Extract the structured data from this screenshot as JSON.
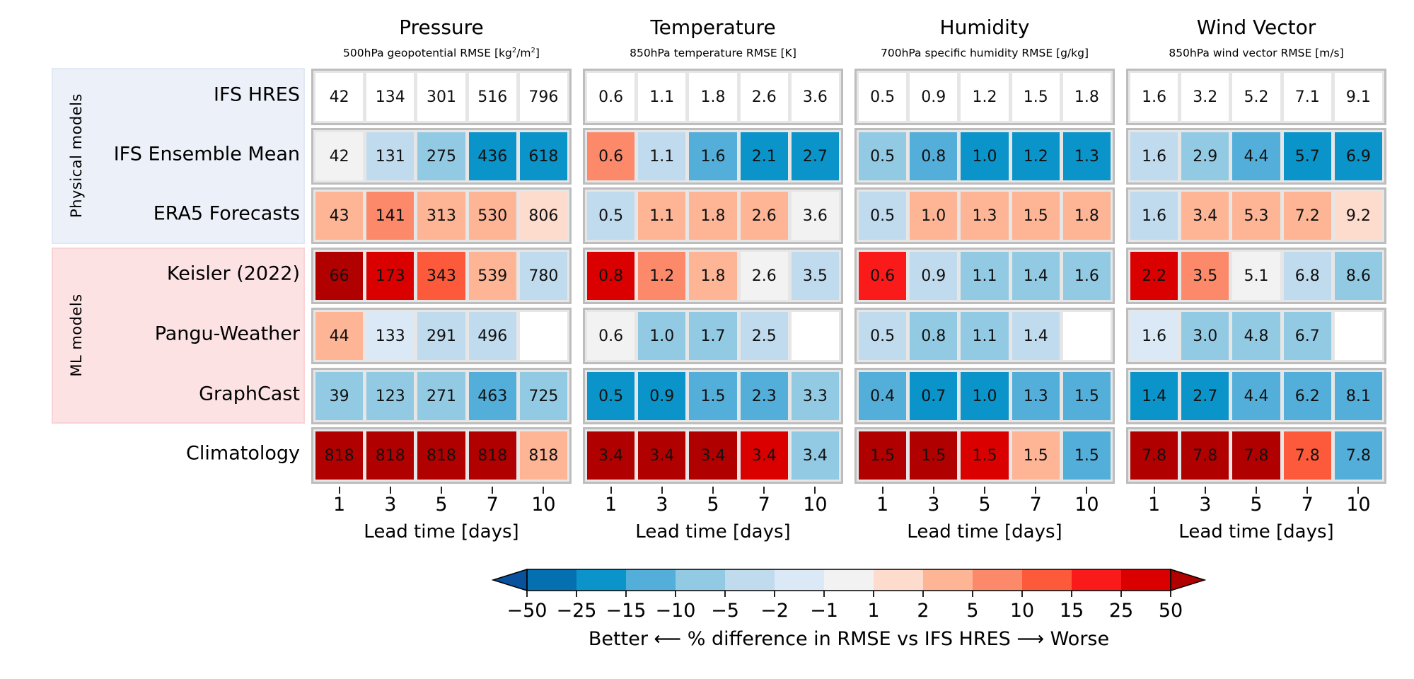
{
  "chart_data": {
    "type": "heatmap",
    "title": "",
    "xlabel": "Lead time [days]",
    "x": [
      1,
      3,
      5,
      7,
      10
    ],
    "groups": [
      {
        "name": "Physical models",
        "models": [
          "IFS HRES",
          "IFS Ensemble Mean",
          "ERA5 Forecasts"
        ],
        "band_color": "#ecf1f9"
      },
      {
        "name": "ML models",
        "models": [
          "Keisler (2022)",
          "Pangu-Weather",
          "GraphCast"
        ],
        "band_color": "#fde2e4"
      }
    ],
    "models": [
      "IFS HRES",
      "IFS Ensemble Mean",
      "ERA5 Forecasts",
      "Keisler (2022)",
      "Pangu-Weather",
      "GraphCast",
      "Climatology"
    ],
    "panels": [
      {
        "title": "Pressure",
        "subtitle_main": "500hPa geopotential RMSE [kg",
        "subtitle_sup1": "2",
        "subtitle_mid": "/m",
        "subtitle_sup2": "2",
        "subtitle_end": "]",
        "rows": [
          {
            "model": "IFS HRES",
            "values": [
              "42",
              "134",
              "301",
              "516",
              "796"
            ],
            "bins": [
              "base",
              "base",
              "base",
              "base",
              "base"
            ]
          },
          {
            "model": "IFS Ensemble Mean",
            "values": [
              "42",
              "131",
              "275",
              "436",
              "618"
            ],
            "bins": [
              "-1..1",
              "-5..-2",
              "-10..-5",
              "-25..-15",
              "-25..-15"
            ]
          },
          {
            "model": "ERA5 Forecasts",
            "values": [
              "43",
              "141",
              "313",
              "530",
              "806"
            ],
            "bins": [
              "2..5",
              "5..10",
              "2..5",
              "2..5",
              "1..2"
            ]
          },
          {
            "model": "Keisler (2022)",
            "values": [
              "66",
              "173",
              "343",
              "539",
              "780"
            ],
            "bins": [
              ">50",
              "25..50",
              "10..15",
              "2..5",
              "-5..-2"
            ]
          },
          {
            "model": "Pangu-Weather",
            "values": [
              "44",
              "133",
              "291",
              "496",
              ""
            ],
            "bins": [
              "2..5",
              "-2..-1",
              "-5..-2",
              "-5..-2",
              "none"
            ]
          },
          {
            "model": "GraphCast",
            "values": [
              "39",
              "123",
              "271",
              "463",
              "725"
            ],
            "bins": [
              "-10..-5",
              "-10..-5",
              "-10..-5",
              "-15..-10",
              "-10..-5"
            ]
          },
          {
            "model": "Climatology",
            "values": [
              "818",
              "818",
              "818",
              "818",
              "818"
            ],
            "bins": [
              ">50",
              ">50",
              ">50",
              ">50",
              "2..5"
            ]
          }
        ]
      },
      {
        "title": "Temperature",
        "subtitle_main": "850hPa temperature RMSE [K]",
        "rows": [
          {
            "model": "IFS HRES",
            "values": [
              "0.6",
              "1.1",
              "1.8",
              "2.6",
              "3.6"
            ],
            "bins": [
              "base",
              "base",
              "base",
              "base",
              "base"
            ]
          },
          {
            "model": "IFS Ensemble Mean",
            "values": [
              "0.6",
              "1.1",
              "1.6",
              "2.1",
              "2.7"
            ],
            "bins": [
              "5..10",
              "-5..-2",
              "-15..-10",
              "-25..-15",
              "-25..-15"
            ]
          },
          {
            "model": "ERA5 Forecasts",
            "values": [
              "0.5",
              "1.1",
              "1.8",
              "2.6",
              "3.6"
            ],
            "bins": [
              "-5..-2",
              "2..5",
              "2..5",
              "2..5",
              "-1..1"
            ]
          },
          {
            "model": "Keisler (2022)",
            "values": [
              "0.8",
              "1.2",
              "1.8",
              "2.6",
              "3.5"
            ],
            "bins": [
              "25..50",
              "5..10",
              "2..5",
              "-1..1",
              "-5..-2"
            ]
          },
          {
            "model": "Pangu-Weather",
            "values": [
              "0.6",
              "1.0",
              "1.7",
              "2.5",
              ""
            ],
            "bins": [
              "-1..1",
              "-10..-5",
              "-10..-5",
              "-5..-2",
              "none"
            ]
          },
          {
            "model": "GraphCast",
            "values": [
              "0.5",
              "0.9",
              "1.5",
              "2.3",
              "3.3"
            ],
            "bins": [
              "-25..-15",
              "-25..-15",
              "-15..-10",
              "-15..-10",
              "-10..-5"
            ]
          },
          {
            "model": "Climatology",
            "values": [
              "3.4",
              "3.4",
              "3.4",
              "3.4",
              "3.4"
            ],
            "bins": [
              ">50",
              ">50",
              ">50",
              "25..50",
              "-10..-5"
            ]
          }
        ]
      },
      {
        "title": "Humidity",
        "subtitle_main": "700hPa specific humidity RMSE [g/kg]",
        "rows": [
          {
            "model": "IFS HRES",
            "values": [
              "0.5",
              "0.9",
              "1.2",
              "1.5",
              "1.8"
            ],
            "bins": [
              "base",
              "base",
              "base",
              "base",
              "base"
            ]
          },
          {
            "model": "IFS Ensemble Mean",
            "values": [
              "0.5",
              "0.8",
              "1.0",
              "1.2",
              "1.3"
            ],
            "bins": [
              "-10..-5",
              "-15..-10",
              "-25..-15",
              "-25..-15",
              "-25..-15"
            ]
          },
          {
            "model": "ERA5 Forecasts",
            "values": [
              "0.5",
              "1.0",
              "1.3",
              "1.5",
              "1.8"
            ],
            "bins": [
              "-5..-2",
              "2..5",
              "2..5",
              "2..5",
              "2..5"
            ]
          },
          {
            "model": "Keisler (2022)",
            "values": [
              "0.6",
              "0.9",
              "1.1",
              "1.4",
              "1.6"
            ],
            "bins": [
              "15..25",
              "-5..-2",
              "-10..-5",
              "-10..-5",
              "-10..-5"
            ]
          },
          {
            "model": "Pangu-Weather",
            "values": [
              "0.5",
              "0.8",
              "1.1",
              "1.4",
              ""
            ],
            "bins": [
              "-5..-2",
              "-10..-5",
              "-10..-5",
              "-5..-2",
              "none"
            ]
          },
          {
            "model": "GraphCast",
            "values": [
              "0.4",
              "0.7",
              "1.0",
              "1.3",
              "1.5"
            ],
            "bins": [
              "-15..-10",
              "-25..-15",
              "-25..-15",
              "-15..-10",
              "-15..-10"
            ]
          },
          {
            "model": "Climatology",
            "values": [
              "1.5",
              "1.5",
              "1.5",
              "1.5",
              "1.5"
            ],
            "bins": [
              ">50",
              ">50",
              "25..50",
              "2..5",
              "-15..-10"
            ]
          }
        ]
      },
      {
        "title": "Wind Vector",
        "subtitle_main": "850hPa wind vector RMSE [m/s]",
        "rows": [
          {
            "model": "IFS HRES",
            "values": [
              "1.6",
              "3.2",
              "5.2",
              "7.1",
              "9.1"
            ],
            "bins": [
              "base",
              "base",
              "base",
              "base",
              "base"
            ]
          },
          {
            "model": "IFS Ensemble Mean",
            "values": [
              "1.6",
              "2.9",
              "4.4",
              "5.7",
              "6.9"
            ],
            "bins": [
              "-5..-2",
              "-10..-5",
              "-15..-10",
              "-25..-15",
              "-25..-15"
            ]
          },
          {
            "model": "ERA5 Forecasts",
            "values": [
              "1.6",
              "3.4",
              "5.3",
              "7.2",
              "9.2"
            ],
            "bins": [
              "-5..-2",
              "2..5",
              "2..5",
              "2..5",
              "1..2"
            ]
          },
          {
            "model": "Keisler (2022)",
            "values": [
              "2.2",
              "3.5",
              "5.1",
              "6.8",
              "8.6"
            ],
            "bins": [
              "25..50",
              "5..10",
              "-1..1",
              "-5..-2",
              "-10..-5"
            ]
          },
          {
            "model": "Pangu-Weather",
            "values": [
              "1.6",
              "3.0",
              "4.8",
              "6.7",
              ""
            ],
            "bins": [
              "-2..-1",
              "-10..-5",
              "-10..-5",
              "-10..-5",
              "none"
            ]
          },
          {
            "model": "GraphCast",
            "values": [
              "1.4",
              "2.7",
              "4.4",
              "6.2",
              "8.1"
            ],
            "bins": [
              "-25..-15",
              "-25..-15",
              "-15..-10",
              "-15..-10",
              "-15..-10"
            ]
          },
          {
            "model": "Climatology",
            "values": [
              "7.8",
              "7.8",
              "7.8",
              "7.8",
              "7.8"
            ],
            "bins": [
              ">50",
              ">50",
              ">50",
              "10..15",
              "-15..-10"
            ]
          }
        ]
      }
    ],
    "colorbar": {
      "label": "Better ⟵ % difference in RMSE vs IFS HRES ⟶ Worse",
      "ticks": [
        "−50",
        "−25",
        "−15",
        "−10",
        "−5",
        "−2",
        "−1",
        "1",
        "2",
        "5",
        "10",
        "15",
        "25",
        "50"
      ],
      "extend": "both",
      "bins": [
        {
          "range": "<-50",
          "color": "#08519c"
        },
        {
          "range": "-50..-25",
          "color": "#0570b0"
        },
        {
          "range": "-25..-15",
          "color": "#0a94c9"
        },
        {
          "range": "-15..-10",
          "color": "#53aed9"
        },
        {
          "range": "-10..-5",
          "color": "#93cae3"
        },
        {
          "range": "-5..-2",
          "color": "#c1dbee"
        },
        {
          "range": "-2..-1",
          "color": "#dbe9f6"
        },
        {
          "range": "-1..1",
          "color": "#f2f2f2"
        },
        {
          "range": "1..2",
          "color": "#fddccd"
        },
        {
          "range": "2..5",
          "color": "#fdb596"
        },
        {
          "range": "5..10",
          "color": "#fc8a6a"
        },
        {
          "range": "10..15",
          "color": "#fc5a3a"
        },
        {
          "range": "15..25",
          "color": "#fa1a1a"
        },
        {
          "range": "25..50",
          "color": "#da0000"
        },
        {
          "range": ">50",
          "color": "#b00000"
        }
      ],
      "base_color": "#ffffff",
      "none_color": "#ffffff"
    }
  }
}
